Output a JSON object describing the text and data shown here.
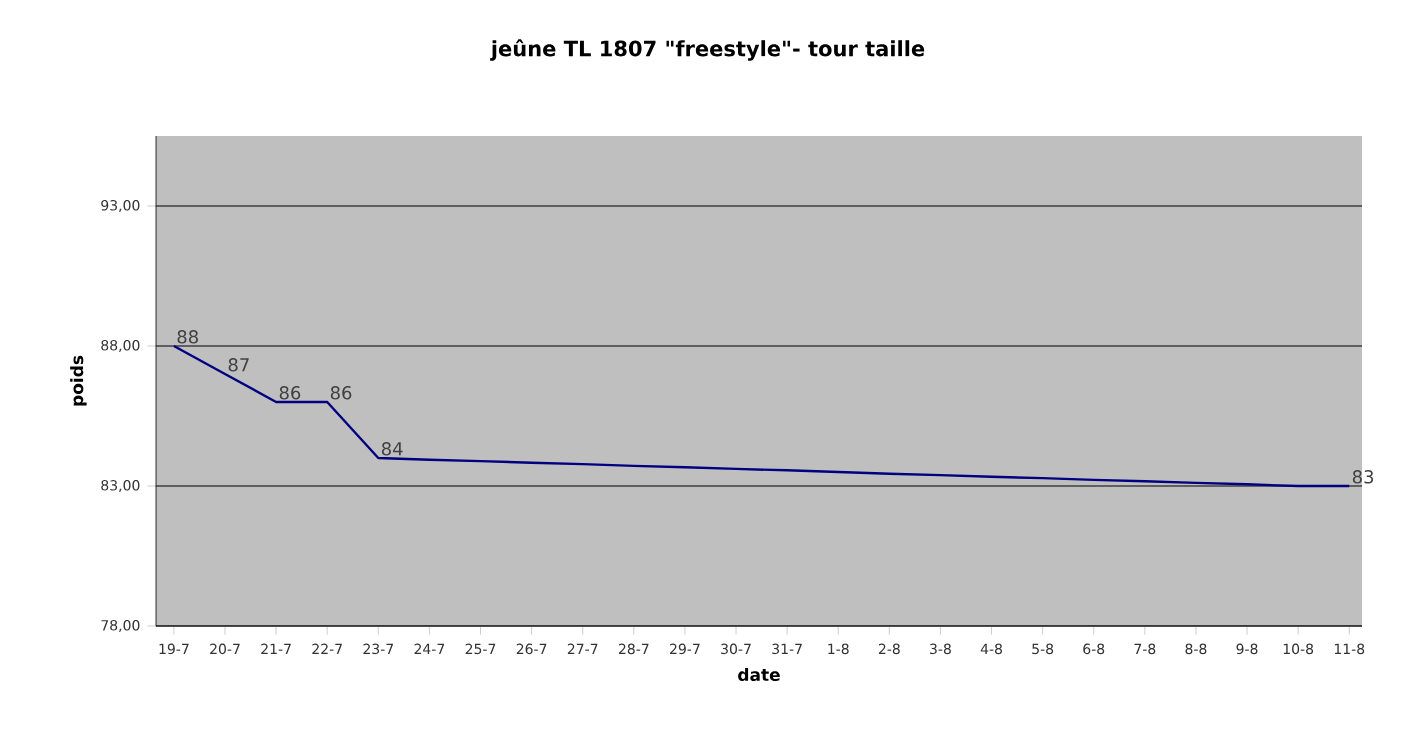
{
  "chart_data": {
    "type": "line",
    "title": "jeûne TL 1807 \"freestyle\"-  tour taille",
    "xlabel": "date",
    "ylabel": "poids",
    "categories": [
      "19-7",
      "20-7",
      "21-7",
      "22-7",
      "23-7",
      "24-7",
      "25-7",
      "26-7",
      "27-7",
      "28-7",
      "29-7",
      "30-7",
      "31-7",
      "1-8",
      "2-8",
      "3-8",
      "4-8",
      "5-8",
      "6-8",
      "7-8",
      "8-8",
      "9-8",
      "10-8",
      "11-8"
    ],
    "series": [
      {
        "color": "#000080",
        "values": [
          88,
          87,
          86,
          86,
          84,
          83.94,
          83.89,
          83.83,
          83.78,
          83.72,
          83.67,
          83.61,
          83.56,
          83.5,
          83.44,
          83.39,
          83.33,
          83.28,
          83.22,
          83.17,
          83.11,
          83.06,
          83.0,
          83
        ],
        "value_labels": [
          "88",
          "87",
          "86",
          "86",
          "84",
          null,
          null,
          null,
          null,
          null,
          null,
          null,
          null,
          null,
          null,
          null,
          null,
          null,
          null,
          null,
          null,
          null,
          null,
          "83"
        ]
      }
    ],
    "ylim": [
      78,
      95.5
    ],
    "yticks": [
      {
        "value": 78,
        "label": "78,00"
      },
      {
        "value": 83,
        "label": "83,00"
      },
      {
        "value": 88,
        "label": "88,00"
      },
      {
        "value": 93,
        "label": "93,00"
      }
    ],
    "grid": "y",
    "marker": "none",
    "line_style": "solid"
  }
}
